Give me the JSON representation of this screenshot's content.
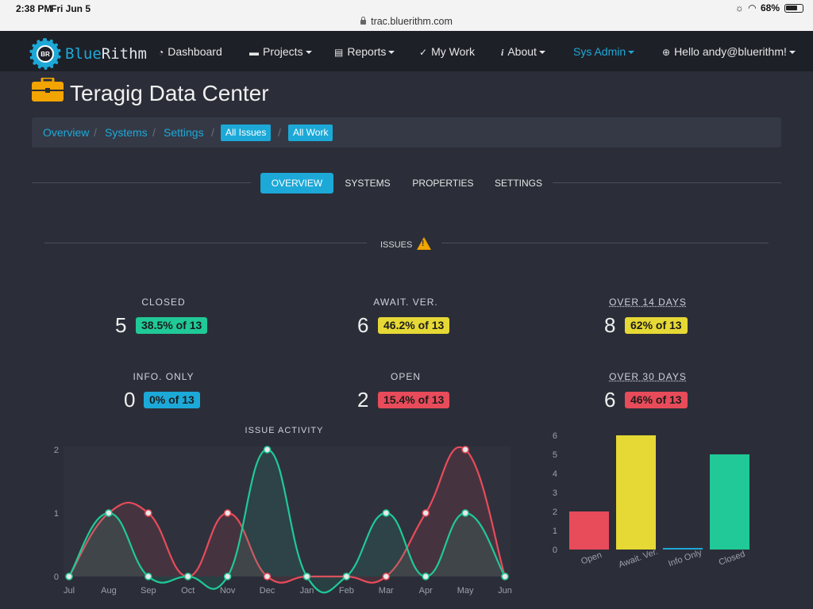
{
  "status_bar": {
    "time": "2:38 PM",
    "date": "Fri Jun 5",
    "battery": "68%"
  },
  "browser": {
    "url": "trac.bluerithm.com"
  },
  "nav": {
    "brand_prefix": "Blue",
    "brand_suffix": "Rithm",
    "logo_text": "BR",
    "items": [
      {
        "label": "Dashboard",
        "icon": "gauge-icon"
      },
      {
        "label": "Projects",
        "icon": "briefcase-icon"
      },
      {
        "label": "Reports",
        "icon": "report-icon"
      },
      {
        "label": "My Work",
        "icon": "check-icon"
      },
      {
        "label": "About",
        "icon": "info-icon"
      },
      {
        "label": "Sys Admin"
      },
      {
        "label": "Hello andy@bluerithm!",
        "icon": "globe-icon"
      }
    ]
  },
  "page": {
    "title": "Teragig Data Center"
  },
  "breadcrumb": {
    "links": [
      "Overview",
      "Systems",
      "Settings"
    ],
    "buttons": [
      "All Issues",
      "All Work"
    ]
  },
  "tabs": [
    "OVERVIEW",
    "SYSTEMS",
    "PROPERTIES",
    "SETTINGS"
  ],
  "issues_header": "ISSUES",
  "stats": {
    "closed": {
      "label": "CLOSED",
      "count": "5",
      "badge": "38.5% of 13"
    },
    "await": {
      "label": "AWAIT. VER.",
      "count": "6",
      "badge": "46.2% of 13"
    },
    "over14": {
      "label": "OVER 14 DAYS",
      "count": "8",
      "badge": "62% of 13"
    },
    "info": {
      "label": "INFO. ONLY",
      "count": "0",
      "badge": "0% of 13"
    },
    "open": {
      "label": "OPEN",
      "count": "2",
      "badge": "15.4% of 13"
    },
    "over30": {
      "label": "OVER 30 DAYS",
      "count": "6",
      "badge": "46% of 13"
    }
  },
  "colors": {
    "accent": "#1ca9d8",
    "green": "#20c997",
    "red": "#e84b5a",
    "yellow": "#e6d835"
  },
  "chart_data": [
    {
      "type": "line",
      "title": "ISSUE ACTIVITY",
      "categories": [
        "Jul",
        "Aug",
        "Sep",
        "Oct",
        "Nov",
        "Dec",
        "Jan",
        "Feb",
        "Mar",
        "Apr",
        "May",
        "Jun"
      ],
      "series": [
        {
          "color": "#e84b5a",
          "values": [
            0,
            1,
            1,
            0,
            1,
            0,
            0,
            0,
            0,
            1,
            2,
            0
          ]
        },
        {
          "color": "#20c997",
          "values": [
            0,
            1,
            0,
            0,
            0,
            2,
            0,
            0,
            1,
            0,
            1,
            0
          ]
        }
      ],
      "ylim": [
        0,
        2
      ],
      "yticks": [
        "0",
        "1",
        "2"
      ]
    },
    {
      "type": "bar",
      "categories": [
        "Open",
        "Await. Ver.",
        "Info Only",
        "Closed"
      ],
      "values": [
        2,
        6,
        0,
        5
      ],
      "colors": [
        "#e84b5a",
        "#e6d835",
        "#1ca9d8",
        "#20c997"
      ],
      "ylim": [
        0,
        6
      ],
      "yticks": [
        "0",
        "1",
        "2",
        "3",
        "4",
        "5",
        "6"
      ]
    }
  ]
}
